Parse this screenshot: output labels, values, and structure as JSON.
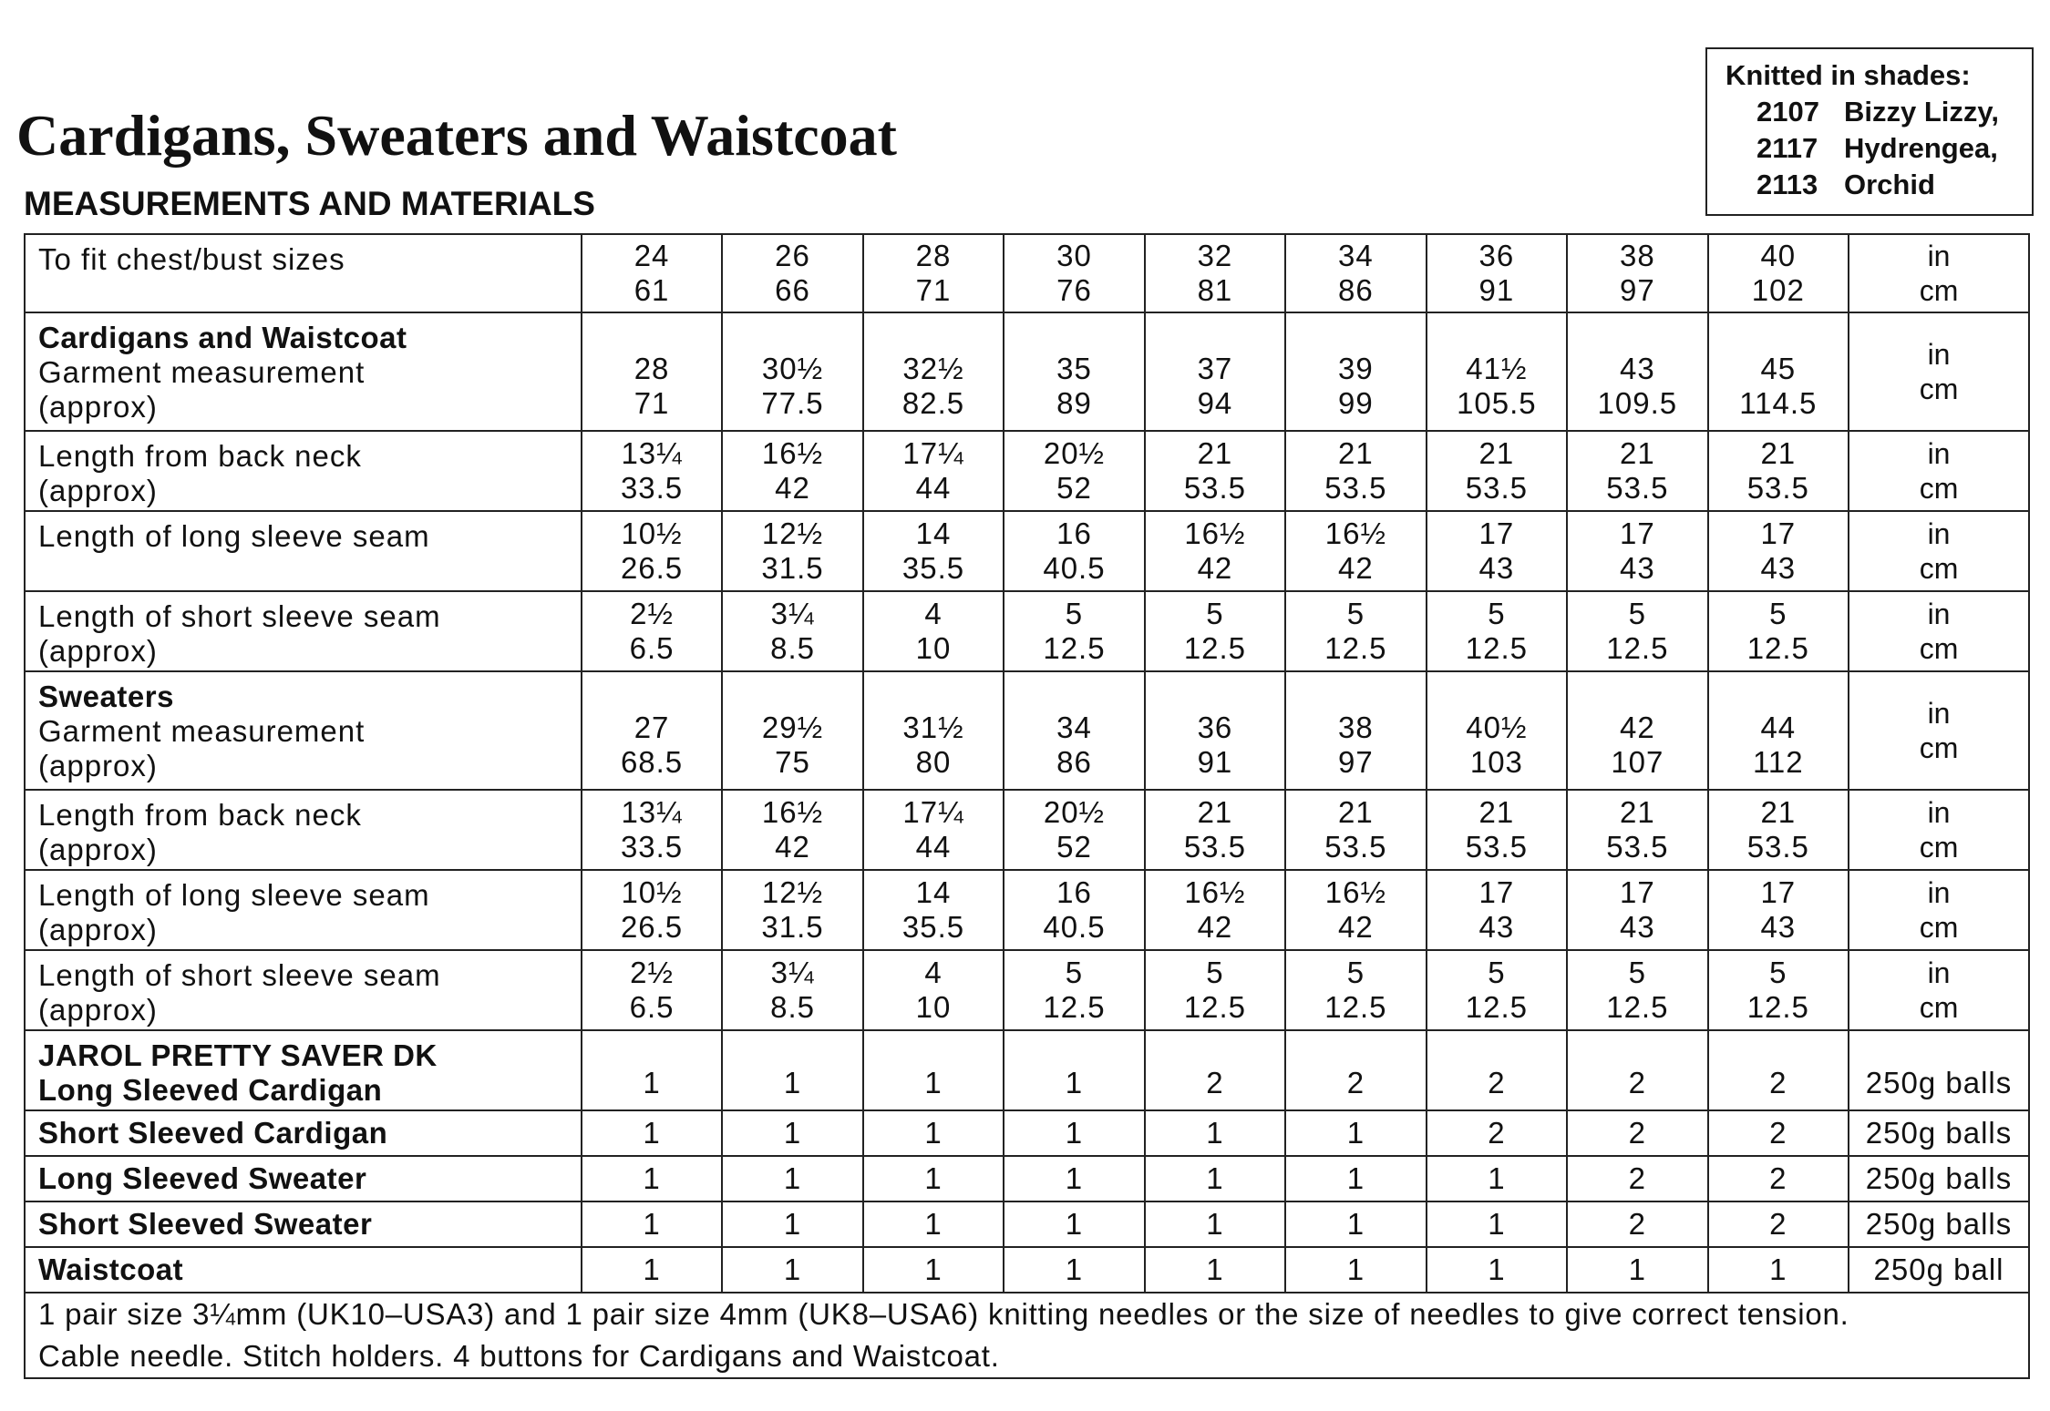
{
  "title": "Cardigans, Sweaters and Waistcoat",
  "subtitle": "MEASUREMENTS AND MATERIALS",
  "shades_box": {
    "heading": "Knitted in shades:",
    "shades": [
      {
        "code": "2107",
        "name": "Bizzy Lizzy,"
      },
      {
        "code": "2117",
        "name": "Hydrengea,"
      },
      {
        "code": "2113",
        "name": "Orchid"
      }
    ]
  },
  "size_row": {
    "label": "To fit chest/bust sizes",
    "values": [
      [
        "24",
        "61"
      ],
      [
        "26",
        "66"
      ],
      [
        "28",
        "71"
      ],
      [
        "30",
        "76"
      ],
      [
        "32",
        "81"
      ],
      [
        "34",
        "86"
      ],
      [
        "36",
        "91"
      ],
      [
        "38",
        "97"
      ],
      [
        "40",
        "102"
      ]
    ],
    "unit": [
      "in",
      "cm"
    ]
  },
  "measurement_rows": [
    {
      "heading": "Cardigans and Waistcoat",
      "label": [
        "Garment measurement",
        "(approx)"
      ],
      "values": [
        [
          "28",
          "71"
        ],
        [
          "30½",
          "77.5"
        ],
        [
          "32½",
          "82.5"
        ],
        [
          "35",
          "89"
        ],
        [
          "37",
          "94"
        ],
        [
          "39",
          "99"
        ],
        [
          "41½",
          "105.5"
        ],
        [
          "43",
          "109.5"
        ],
        [
          "45",
          "114.5"
        ]
      ],
      "unit": [
        "in",
        "cm"
      ]
    },
    {
      "heading": "",
      "label": [
        "Length from back neck",
        "(approx)"
      ],
      "values": [
        [
          "13¼",
          "33.5"
        ],
        [
          "16½",
          "42"
        ],
        [
          "17¼",
          "44"
        ],
        [
          "20½",
          "52"
        ],
        [
          "21",
          "53.5"
        ],
        [
          "21",
          "53.5"
        ],
        [
          "21",
          "53.5"
        ],
        [
          "21",
          "53.5"
        ],
        [
          "21",
          "53.5"
        ]
      ],
      "unit": [
        "in",
        "cm"
      ]
    },
    {
      "heading": "",
      "label": [
        "Length of long sleeve seam",
        ""
      ],
      "values": [
        [
          "10½",
          "26.5"
        ],
        [
          "12½",
          "31.5"
        ],
        [
          "14",
          "35.5"
        ],
        [
          "16",
          "40.5"
        ],
        [
          "16½",
          "42"
        ],
        [
          "16½",
          "42"
        ],
        [
          "17",
          "43"
        ],
        [
          "17",
          "43"
        ],
        [
          "17",
          "43"
        ]
      ],
      "unit": [
        "in",
        "cm"
      ]
    },
    {
      "heading": "",
      "label": [
        "Length of short sleeve seam",
        "(approx)"
      ],
      "values": [
        [
          "2½",
          "6.5"
        ],
        [
          "3¼",
          "8.5"
        ],
        [
          "4",
          "10"
        ],
        [
          "5",
          "12.5"
        ],
        [
          "5",
          "12.5"
        ],
        [
          "5",
          "12.5"
        ],
        [
          "5",
          "12.5"
        ],
        [
          "5",
          "12.5"
        ],
        [
          "5",
          "12.5"
        ]
      ],
      "unit": [
        "in",
        "cm"
      ]
    },
    {
      "heading": "Sweaters",
      "label": [
        "Garment measurement",
        "(approx)"
      ],
      "values": [
        [
          "27",
          "68.5"
        ],
        [
          "29½",
          "75"
        ],
        [
          "31½",
          "80"
        ],
        [
          "34",
          "86"
        ],
        [
          "36",
          "91"
        ],
        [
          "38",
          "97"
        ],
        [
          "40½",
          "103"
        ],
        [
          "42",
          "107"
        ],
        [
          "44",
          "112"
        ]
      ],
      "unit": [
        "in",
        "cm"
      ]
    },
    {
      "heading": "",
      "label": [
        "Length from back neck",
        "(approx)"
      ],
      "values": [
        [
          "13¼",
          "33.5"
        ],
        [
          "16½",
          "42"
        ],
        [
          "17¼",
          "44"
        ],
        [
          "20½",
          "52"
        ],
        [
          "21",
          "53.5"
        ],
        [
          "21",
          "53.5"
        ],
        [
          "21",
          "53.5"
        ],
        [
          "21",
          "53.5"
        ],
        [
          "21",
          "53.5"
        ]
      ],
      "unit": [
        "in",
        "cm"
      ]
    },
    {
      "heading": "",
      "label": [
        "Length of long sleeve seam",
        "(approx)"
      ],
      "values": [
        [
          "10½",
          "26.5"
        ],
        [
          "12½",
          "31.5"
        ],
        [
          "14",
          "35.5"
        ],
        [
          "16",
          "40.5"
        ],
        [
          "16½",
          "42"
        ],
        [
          "16½",
          "42"
        ],
        [
          "17",
          "43"
        ],
        [
          "17",
          "43"
        ],
        [
          "17",
          "43"
        ]
      ],
      "unit": [
        "in",
        "cm"
      ]
    },
    {
      "heading": "",
      "label": [
        "Length of short sleeve seam",
        "(approx)"
      ],
      "values": [
        [
          "2½",
          "6.5"
        ],
        [
          "3¼",
          "8.5"
        ],
        [
          "4",
          "10"
        ],
        [
          "5",
          "12.5"
        ],
        [
          "5",
          "12.5"
        ],
        [
          "5",
          "12.5"
        ],
        [
          "5",
          "12.5"
        ],
        [
          "5",
          "12.5"
        ],
        [
          "5",
          "12.5"
        ]
      ],
      "unit": [
        "in",
        "cm"
      ]
    }
  ],
  "materials": {
    "yarn_heading": "JAROL PRETTY SAVER DK",
    "rows": [
      {
        "label": "Long Sleeved Cardigan",
        "values": [
          "1",
          "1",
          "1",
          "1",
          "2",
          "2",
          "2",
          "2",
          "2"
        ],
        "unit": "250g balls"
      },
      {
        "label": "Short Sleeved Cardigan",
        "values": [
          "1",
          "1",
          "1",
          "1",
          "1",
          "1",
          "2",
          "2",
          "2"
        ],
        "unit": "250g balls"
      },
      {
        "label": "Long Sleeved Sweater",
        "values": [
          "1",
          "1",
          "1",
          "1",
          "1",
          "1",
          "1",
          "2",
          "2"
        ],
        "unit": "250g balls"
      },
      {
        "label": "Short Sleeved Sweater",
        "values": [
          "1",
          "1",
          "1",
          "1",
          "1",
          "1",
          "1",
          "2",
          "2"
        ],
        "unit": "250g balls"
      },
      {
        "label": "Waistcoat",
        "values": [
          "1",
          "1",
          "1",
          "1",
          "1",
          "1",
          "1",
          "1",
          "1"
        ],
        "unit": "250g ball"
      }
    ]
  },
  "notes": [
    "1 pair size 3¼mm (UK10–USA3) and 1 pair size 4mm (UK8–USA6) knitting needles or the size of needles to give correct tension.",
    "Cable needle. Stitch holders. 4 buttons for Cardigans and Waistcoat."
  ]
}
